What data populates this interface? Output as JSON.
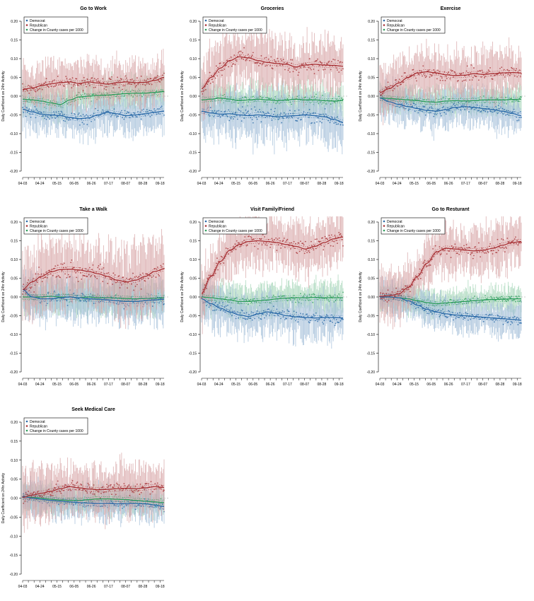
{
  "figure": {
    "ylabel": "Daily Coefficient on 24hr Activity",
    "legend": [
      "Democrat",
      "Republican",
      "Change in County cases per 1000"
    ]
  },
  "colors": {
    "dem": "#2b6aa8",
    "rep": "#a83236",
    "cases": "#2e9d5c",
    "dem_band": "#9cbad6",
    "rep_band": "#d6a1a3",
    "cases_band": "#9fd3b3"
  },
  "chart_data": [
    {
      "type": "scatter",
      "title": "Go to Work",
      "x_ticks": [
        "04-03",
        "04-24",
        "05-15",
        "06-05",
        "06-26",
        "07-17",
        "08-07",
        "08-28",
        "09-18"
      ],
      "ylim": [
        -0.2,
        0.2
      ],
      "y_ticks": [
        -0.2,
        -0.15,
        -0.1,
        -0.05,
        0,
        0.05,
        0.1,
        0.15,
        0.2
      ],
      "legend": "top-left",
      "series": [
        {
          "name": "Democrat",
          "trend": [
            -0.035,
            -0.042,
            -0.048,
            -0.05,
            -0.052,
            -0.057,
            -0.06,
            -0.058,
            -0.05,
            -0.043,
            -0.047,
            -0.052,
            -0.05,
            -0.047,
            -0.043,
            -0.04
          ],
          "noise": 0.035
        },
        {
          "name": "Republican",
          "trend": [
            0.018,
            0.022,
            0.028,
            0.033,
            0.036,
            0.038,
            0.034,
            0.038,
            0.035,
            0.032,
            0.036,
            0.038,
            0.036,
            0.037,
            0.042,
            0.05
          ],
          "noise": 0.04
        },
        {
          "name": "Change in County cases per 1000",
          "trend": [
            -0.008,
            -0.01,
            -0.013,
            -0.018,
            -0.022,
            -0.01,
            -0.002,
            0.0,
            0.002,
            0.003,
            0.005,
            0.007,
            0.008,
            0.008,
            0.01,
            0.012
          ],
          "noise": 0.03
        }
      ]
    },
    {
      "type": "scatter",
      "title": "Groceries",
      "x_ticks": [
        "04-03",
        "04-24",
        "05-15",
        "06-05",
        "06-26",
        "07-17",
        "08-07",
        "08-28",
        "09-18"
      ],
      "ylim": [
        -0.2,
        0.2
      ],
      "y_ticks": [
        -0.2,
        -0.15,
        -0.1,
        -0.05,
        0,
        0.05,
        0.1,
        0.15,
        0.2
      ],
      "legend": "top-left",
      "series": [
        {
          "name": "Democrat",
          "trend": [
            -0.04,
            -0.045,
            -0.048,
            -0.047,
            -0.05,
            -0.052,
            -0.05,
            -0.052,
            -0.055,
            -0.053,
            -0.052,
            -0.05,
            -0.052,
            -0.055,
            -0.062,
            -0.07
          ],
          "noise": 0.045
        },
        {
          "name": "Republican",
          "trend": [
            0.02,
            0.05,
            0.075,
            0.095,
            0.105,
            0.102,
            0.095,
            0.09,
            0.087,
            0.085,
            0.078,
            0.083,
            0.085,
            0.083,
            0.082,
            0.08
          ],
          "noise": 0.05
        },
        {
          "name": "Change in County cases per 1000",
          "trend": [
            -0.01,
            -0.008,
            -0.005,
            -0.008,
            -0.012,
            -0.01,
            -0.008,
            -0.01,
            -0.012,
            -0.01,
            -0.008,
            -0.01,
            -0.01,
            -0.012,
            -0.013,
            -0.012
          ],
          "noise": 0.03
        }
      ]
    },
    {
      "type": "scatter",
      "title": "Exercise",
      "x_ticks": [
        "04-03",
        "04-24",
        "05-15",
        "06-05",
        "06-26",
        "07-17",
        "08-07",
        "08-28",
        "09-18"
      ],
      "ylim": [
        -0.2,
        0.2
      ],
      "y_ticks": [
        -0.2,
        -0.15,
        -0.1,
        -0.05,
        0,
        0.05,
        0.1,
        0.15,
        0.2
      ],
      "legend": "top-left",
      "series": [
        {
          "name": "Democrat",
          "trend": [
            -0.005,
            -0.015,
            -0.022,
            -0.028,
            -0.033,
            -0.038,
            -0.04,
            -0.036,
            -0.03,
            -0.028,
            -0.03,
            -0.033,
            -0.036,
            -0.04,
            -0.046,
            -0.052
          ],
          "noise": 0.035
        },
        {
          "name": "Republican",
          "trend": [
            0.01,
            0.02,
            0.035,
            0.05,
            0.062,
            0.065,
            0.062,
            0.057,
            0.055,
            0.056,
            0.06,
            0.058,
            0.06,
            0.062,
            0.063,
            0.062
          ],
          "noise": 0.045
        },
        {
          "name": "Change in County cases per 1000",
          "trend": [
            -0.005,
            -0.006,
            -0.008,
            -0.01,
            -0.012,
            -0.015,
            -0.016,
            -0.013,
            -0.012,
            -0.013,
            -0.012,
            -0.01,
            -0.01,
            -0.01,
            -0.009,
            -0.008
          ],
          "noise": 0.025
        }
      ]
    },
    {
      "type": "scatter",
      "title": "Take a Walk",
      "x_ticks": [
        "04-03",
        "04-24",
        "05-15",
        "06-05",
        "06-26",
        "07-17",
        "08-07",
        "08-28",
        "09-18"
      ],
      "ylim": [
        -0.2,
        0.2
      ],
      "y_ticks": [
        -0.2,
        -0.15,
        -0.1,
        -0.05,
        0,
        0.05,
        0.1,
        0.15,
        0.2
      ],
      "legend": "top-left",
      "series": [
        {
          "name": "Democrat",
          "trend": [
            0.02,
            0.0,
            -0.005,
            -0.005,
            -0.002,
            0.0,
            -0.002,
            -0.005,
            -0.006,
            -0.008,
            -0.01,
            -0.012,
            -0.012,
            -0.01,
            -0.008,
            -0.006
          ],
          "noise": 0.04
        },
        {
          "name": "Republican",
          "trend": [
            0.02,
            0.04,
            0.055,
            0.067,
            0.073,
            0.074,
            0.072,
            0.068,
            0.062,
            0.055,
            0.045,
            0.04,
            0.045,
            0.055,
            0.068,
            0.075
          ],
          "noise": 0.06
        },
        {
          "name": "Change in County cases per 1000",
          "trend": [
            0.0,
            0.0,
            0.0,
            0.002,
            0.0,
            0.0,
            -0.002,
            0.0,
            -0.002,
            -0.002,
            -0.003,
            -0.004,
            -0.005,
            -0.004,
            -0.003,
            -0.002
          ],
          "noise": 0.03
        }
      ]
    },
    {
      "type": "scatter",
      "title": "Visit Family/Friend",
      "x_ticks": [
        "04-03",
        "04-24",
        "05-15",
        "06-05",
        "06-26",
        "07-17",
        "08-07",
        "08-28",
        "09-18"
      ],
      "ylim": [
        -0.2,
        0.2
      ],
      "y_ticks": [
        -0.2,
        -0.15,
        -0.1,
        -0.05,
        0,
        0.05,
        0.1,
        0.15,
        0.2
      ],
      "legend": "top-left",
      "series": [
        {
          "name": "Democrat",
          "trend": [
            -0.005,
            -0.018,
            -0.03,
            -0.04,
            -0.048,
            -0.052,
            -0.045,
            -0.04,
            -0.044,
            -0.05,
            -0.053,
            -0.055,
            -0.056,
            -0.055,
            -0.055,
            -0.056
          ],
          "noise": 0.04
        },
        {
          "name": "Republican",
          "trend": [
            0.01,
            0.055,
            0.095,
            0.125,
            0.14,
            0.148,
            0.15,
            0.148,
            0.145,
            0.14,
            0.135,
            0.128,
            0.135,
            0.145,
            0.155,
            0.16
          ],
          "noise": 0.05
        },
        {
          "name": "Change in County cases per 1000",
          "trend": [
            0.0,
            -0.002,
            -0.005,
            -0.008,
            -0.012,
            -0.012,
            -0.01,
            -0.008,
            -0.005,
            -0.003,
            -0.002,
            -0.002,
            -0.001,
            -0.002,
            -0.002,
            -0.002
          ],
          "noise": 0.03
        }
      ]
    },
    {
      "type": "scatter",
      "title": "Go to Resturant",
      "x_ticks": [
        "04-03",
        "04-24",
        "05-15",
        "06-05",
        "06-26",
        "07-17",
        "08-07",
        "08-28",
        "09-18"
      ],
      "ylim": [
        -0.2,
        0.2
      ],
      "y_ticks": [
        -0.2,
        -0.15,
        -0.1,
        -0.05,
        0,
        0.05,
        0.1,
        0.15,
        0.2
      ],
      "legend": "top-left",
      "series": [
        {
          "name": "Democrat",
          "trend": [
            0.0,
            0.0,
            -0.002,
            -0.01,
            -0.022,
            -0.033,
            -0.04,
            -0.045,
            -0.048,
            -0.05,
            -0.052,
            -0.054,
            -0.056,
            -0.058,
            -0.06,
            -0.062
          ],
          "noise": 0.03
        },
        {
          "name": "Republican",
          "trend": [
            0.002,
            0.003,
            0.008,
            0.025,
            0.055,
            0.09,
            0.12,
            0.13,
            0.128,
            0.125,
            0.123,
            0.125,
            0.13,
            0.138,
            0.145,
            0.148
          ],
          "noise": 0.045
        },
        {
          "name": "Change in County cases per 1000",
          "trend": [
            0.0,
            0.0,
            -0.002,
            -0.005,
            -0.01,
            -0.015,
            -0.018,
            -0.016,
            -0.014,
            -0.012,
            -0.01,
            -0.008,
            -0.007,
            -0.006,
            -0.005,
            -0.005
          ],
          "noise": 0.025
        }
      ]
    },
    {
      "type": "scatter",
      "title": "Seek Medical Care",
      "x_ticks": [
        "04-03",
        "04-24",
        "05-15",
        "06-05",
        "06-26",
        "07-17",
        "08-07",
        "08-28",
        "09-18"
      ],
      "ylim": [
        -0.2,
        0.2
      ],
      "y_ticks": [
        -0.2,
        -0.15,
        -0.1,
        -0.05,
        0,
        0.05,
        0.1,
        0.15,
        0.2
      ],
      "legend": "top-left",
      "series": [
        {
          "name": "Democrat",
          "trend": [
            0.005,
            0.0,
            -0.003,
            -0.006,
            -0.008,
            -0.01,
            -0.012,
            -0.013,
            -0.014,
            -0.014,
            -0.015,
            -0.014,
            -0.014,
            -0.015,
            -0.018,
            -0.022
          ],
          "noise": 0.03
        },
        {
          "name": "Republican",
          "trend": [
            0.002,
            0.008,
            0.013,
            0.018,
            0.025,
            0.03,
            0.027,
            0.024,
            0.022,
            0.023,
            0.025,
            0.026,
            0.025,
            0.027,
            0.03,
            0.028
          ],
          "noise": 0.045
        },
        {
          "name": "Change in County cases per 1000",
          "trend": [
            0.003,
            0.002,
            0.0,
            -0.003,
            -0.005,
            -0.006,
            -0.006,
            -0.004,
            -0.002,
            -0.002,
            -0.003,
            -0.004,
            -0.006,
            -0.008,
            -0.01,
            -0.012
          ],
          "noise": 0.025
        }
      ]
    }
  ]
}
